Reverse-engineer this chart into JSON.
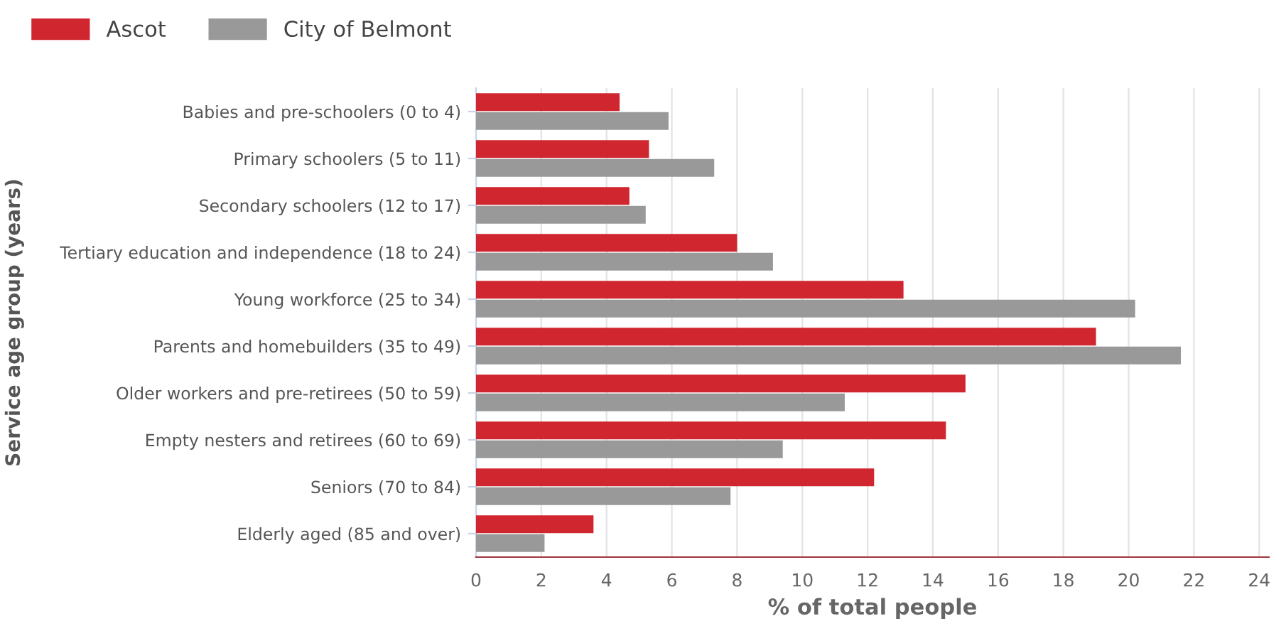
{
  "chart_data": {
    "type": "bar",
    "orientation": "horizontal",
    "xlabel": "% of total people",
    "ylabel": "Service age group (years)",
    "categories": [
      "Babies and pre-schoolers (0 to 4)",
      "Primary schoolers (5 to 11)",
      "Secondary schoolers (12 to 17)",
      "Tertiary education and independence (18 to 24)",
      "Young workforce (25 to 34)",
      "Parents and homebuilders (35 to 49)",
      "Older workers and pre-retirees (50 to 59)",
      "Empty nesters and retirees (60 to 69)",
      "Seniors (70 to 84)",
      "Elderly aged (85 and over)"
    ],
    "series": [
      {
        "name": "Ascot",
        "color": "#d0262f",
        "values": [
          4.4,
          5.3,
          4.7,
          8.0,
          13.1,
          19.0,
          15.0,
          14.4,
          12.2,
          3.6
        ]
      },
      {
        "name": "City of Belmont",
        "color": "#999999",
        "values": [
          5.9,
          7.3,
          5.2,
          9.1,
          20.2,
          21.6,
          11.3,
          9.4,
          7.8,
          2.1
        ]
      }
    ],
    "xlim": [
      0,
      24.3
    ],
    "xticks": [
      0,
      2,
      4,
      6,
      8,
      10,
      12,
      14,
      16,
      18,
      20,
      22,
      24
    ],
    "grid": "x",
    "legend": "top left"
  }
}
